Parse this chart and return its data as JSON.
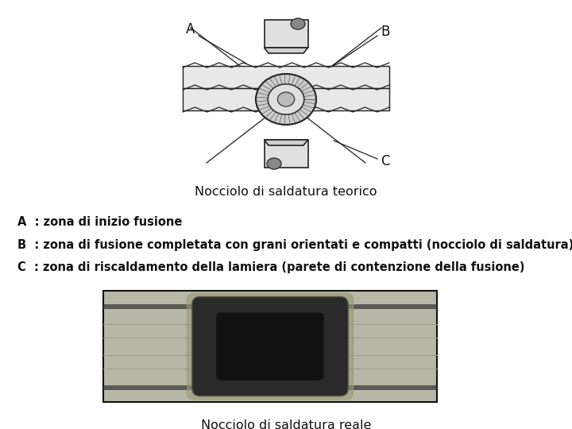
{
  "background_color": "#ffffff",
  "title1": "Nocciolo di saldatura teorico",
  "title2": "Nocciolo di saldatura reale",
  "line_A": "A  : zona di inizio fusione",
  "line_B": "B  : zona di fusione completata con grani orientati e compatti (nocciolo di saldatura)",
  "line_C": "C  : zona di riscaldamento della lamiera (parete di contenzione della fusione)",
  "text_fontsize": 10.5,
  "caption_fontsize": 11.5
}
